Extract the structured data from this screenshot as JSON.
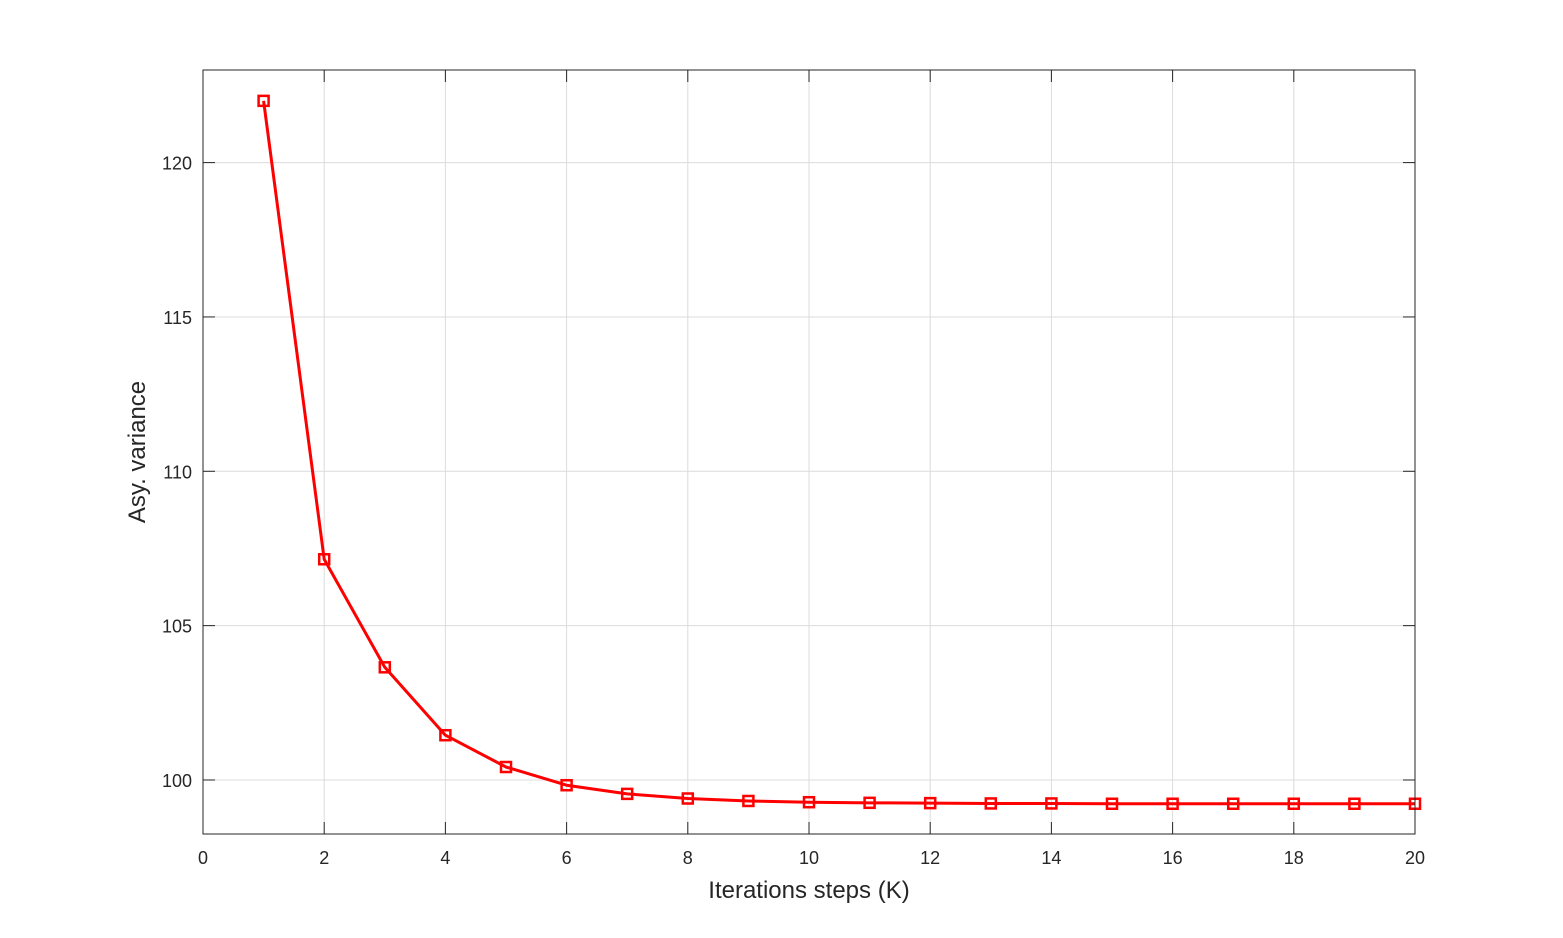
{
  "chart_data": {
    "type": "line",
    "xlabel": "Iterations steps (K)",
    "ylabel": "Asy. variance",
    "xlim": [
      0,
      20
    ],
    "ylim": [
      98.25,
      123
    ],
    "xticks": [
      0,
      2,
      4,
      6,
      8,
      10,
      12,
      14,
      16,
      18,
      20
    ],
    "yticks": [
      100,
      105,
      110,
      115,
      120
    ],
    "grid": true,
    "series": [
      {
        "color": "#ff0000",
        "marker": "square",
        "x": [
          1,
          2,
          3,
          4,
          5,
          6,
          7,
          8,
          9,
          10,
          11,
          12,
          13,
          14,
          15,
          16,
          17,
          18,
          19,
          20
        ],
        "values": [
          122.0,
          107.15,
          103.65,
          101.45,
          100.42,
          99.83,
          99.55,
          99.4,
          99.32,
          99.28,
          99.26,
          99.25,
          99.24,
          99.24,
          99.23,
          99.23,
          99.23,
          99.23,
          99.23,
          99.23
        ]
      }
    ]
  }
}
